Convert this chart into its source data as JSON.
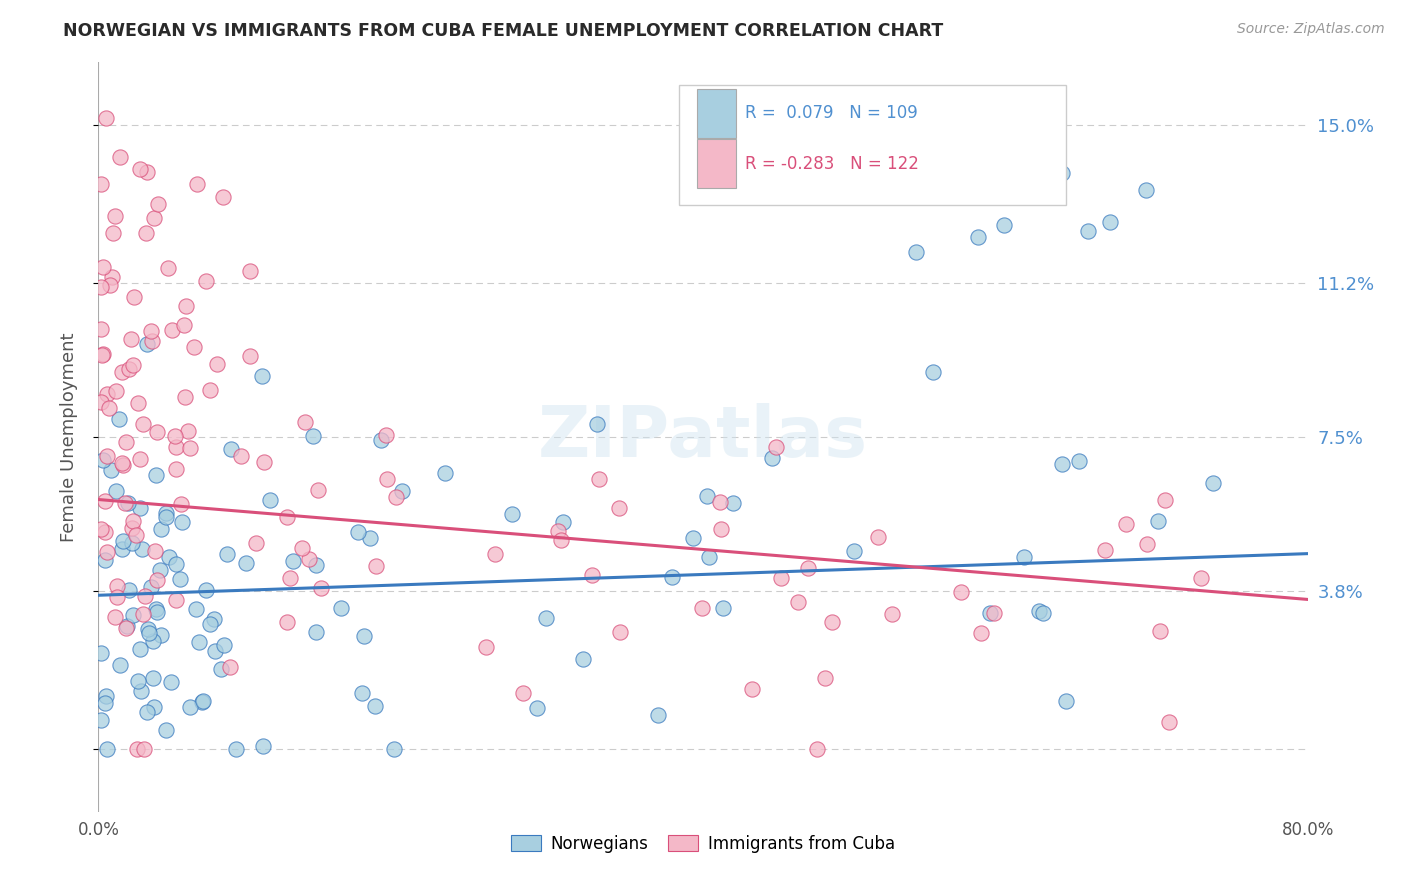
{
  "title": "NORWEGIAN VS IMMIGRANTS FROM CUBA FEMALE UNEMPLOYMENT CORRELATION CHART",
  "source": "Source: ZipAtlas.com",
  "ylabel": "Female Unemployment",
  "ytick_labels": [
    "",
    "3.8%",
    "7.5%",
    "11.2%",
    "15.0%"
  ],
  "xlim": [
    0.0,
    0.8
  ],
  "ylim": [
    -0.015,
    0.165
  ],
  "watermark": "ZIPatlas",
  "legend_label1": "Norwegians",
  "legend_label2": "Immigrants from Cuba",
  "r1": 0.079,
  "n1": 109,
  "r2": -0.283,
  "n2": 122,
  "blue_scatter_color": "#a8cfe0",
  "pink_scatter_color": "#f4b8c8",
  "blue_line_color": "#3a7abf",
  "pink_line_color": "#d94f7a",
  "title_color": "#2a2a2a",
  "right_ytick_color": "#5090d0",
  "grid_color": "#cccccc",
  "background_color": "#ffffff"
}
